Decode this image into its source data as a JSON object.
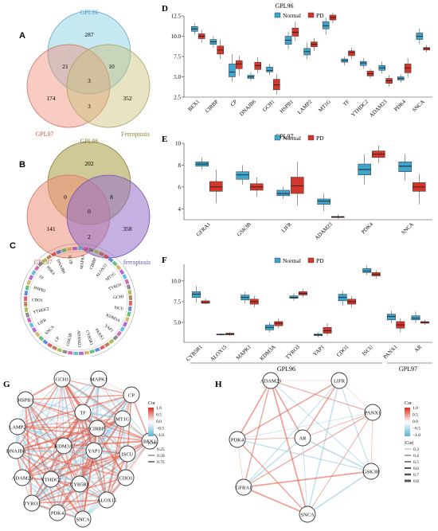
{
  "panels": {
    "A": {
      "letter": "A",
      "labels": {
        "top": "GPL96",
        "left": "GPL97",
        "right": "Ferroptosis"
      },
      "counts": {
        "top_only": "287",
        "left_only": "174",
        "right_only": "352",
        "top_left": "21",
        "top_right": "10",
        "left_right": "3",
        "all": "3"
      },
      "colors": {
        "top": "#7ecbe0",
        "left": "#ef8f7a",
        "right": "#b5b06a"
      }
    },
    "B": {
      "letter": "B",
      "labels": {
        "top": "GPL96",
        "left": "GPL97",
        "right": "ferroptosis"
      },
      "counts": {
        "top_only": "202",
        "left_only": "141",
        "right_only": "358",
        "top_left": "0",
        "top_right": "8",
        "left_right": "2",
        "all": "0"
      },
      "colors": {
        "top": "#a79c43",
        "left": "#ef8f7a",
        "right": "#9370c8"
      }
    },
    "C": {
      "letter": "C",
      "genes": [
        "IL1B",
        "MAPK1",
        "CIRBP",
        "ALOX15",
        "MT1G",
        "TYRO3",
        "GCH1",
        "ISCU",
        "KDM3A",
        "YAP1",
        "PANX1",
        "CYB5R1",
        "ADAM23",
        "GSK3B",
        "CP",
        "SNCA",
        "LIFR",
        "YTHDC2",
        "CDO1",
        "HSPB1",
        "TF",
        "PDK4",
        "DNAJB6"
      ]
    },
    "G": {
      "letter": "G",
      "nodes": [
        "GCH1",
        "MAPK1",
        "HSPB1",
        "CP",
        "LAMP2",
        "TF",
        "CIRBP",
        "MT1G",
        "DNAJB6",
        "KDM3A",
        "YAP1",
        "ISCU",
        "BEX1",
        "ADAM23",
        "YTHDC2",
        "CDO1",
        "CYB5R1",
        "ALOX15",
        "TYRO3",
        "PDK4",
        "SNCA"
      ],
      "legend": {
        "cor_title": "Cor",
        "cor_ticks": [
          "1.0",
          "0.5",
          "0.0",
          "−0.5",
          "−1.0"
        ],
        "abs_title": "|Cor|",
        "abs_ticks": [
          "0.25",
          "0.50",
          "0.75"
        ]
      }
    },
    "H": {
      "letter": "H",
      "nodes": [
        "ADAM23",
        "LIFR",
        "PANX1",
        "PDK4",
        "AR",
        "GSK3B",
        "GFRA1",
        "SNCA"
      ],
      "legend": {
        "cor_title": "Cor",
        "cor_ticks": [
          "1.0",
          "0.5",
          "0.0",
          "−0.5",
          "−1.0"
        ],
        "abs_title": "|Cor|",
        "abs_ticks": [
          "0.3",
          "0.4",
          "0.5",
          "0.6",
          "0.7",
          "0.8"
        ]
      }
    },
    "F": {
      "group_labels": [
        "GPL96",
        "GPL97"
      ]
    }
  },
  "chart_data": [
    {
      "panel": "D",
      "type": "box",
      "title": "GPL96",
      "legend": [
        "Normal",
        "PD"
      ],
      "colors": {
        "Normal": "#3fa5cd",
        "PD": "#d2372b"
      },
      "categories": [
        "BEX1",
        "CIRBP",
        "CP",
        "DNAJB6",
        "GCH1",
        "HSPB1",
        "LAMP2",
        "MT1G",
        "TF",
        "YTHDC2",
        "ADAM23",
        "PDK4",
        "SNCA"
      ],
      "ylim": [
        2.5,
        12.5
      ],
      "yticks": [
        "2.5",
        "5.0",
        "7.5",
        "10.0",
        "12.5"
      ],
      "series": [
        {
          "name": "Normal",
          "values": [
            [
              10.2,
              10.6,
              10.9,
              11.2,
              11.6
            ],
            [
              8.6,
              9.0,
              9.3,
              9.6,
              10.0
            ],
            [
              4.4,
              5.0,
              5.6,
              6.6,
              7.8
            ],
            [
              4.5,
              4.8,
              5.0,
              5.2,
              5.6
            ],
            [
              5.2,
              5.6,
              5.8,
              6.2,
              6.6
            ],
            [
              8.4,
              9.0,
              9.5,
              10.0,
              10.6
            ],
            [
              7.2,
              7.7,
              8.1,
              8.5,
              9.2
            ],
            [
              10.2,
              10.9,
              11.3,
              11.8,
              12.3
            ],
            [
              6.4,
              6.8,
              7.0,
              7.2,
              7.5
            ],
            [
              6.0,
              6.4,
              6.7,
              6.9,
              7.3
            ],
            [
              5.4,
              5.8,
              6.1,
              6.4,
              6.9
            ],
            [
              4.3,
              4.6,
              4.8,
              5.0,
              5.3
            ],
            [
              9.0,
              9.6,
              10.0,
              10.4,
              11.0
            ]
          ]
        },
        {
          "name": "PD",
          "values": [
            [
              9.2,
              9.7,
              10.0,
              10.3,
              10.8
            ],
            [
              7.2,
              7.8,
              8.3,
              8.8,
              9.6
            ],
            [
              5.2,
              6.0,
              6.6,
              7.0,
              7.6
            ],
            [
              5.4,
              5.9,
              6.4,
              6.8,
              7.4
            ],
            [
              2.8,
              3.4,
              4.0,
              4.7,
              5.3
            ],
            [
              9.4,
              10.0,
              10.5,
              11.0,
              11.8
            ],
            [
              8.2,
              8.7,
              9.0,
              9.3,
              9.8
            ],
            [
              11.6,
              12.0,
              12.3,
              12.6,
              12.9
            ],
            [
              7.2,
              7.6,
              8.0,
              8.2,
              8.6
            ],
            [
              4.8,
              5.1,
              5.4,
              5.7,
              6.0
            ],
            [
              3.8,
              4.2,
              4.5,
              4.8,
              5.2
            ],
            [
              4.9,
              5.5,
              6.1,
              6.6,
              7.3
            ],
            [
              8.0,
              8.3,
              8.5,
              8.6,
              8.9
            ]
          ]
        }
      ]
    },
    {
      "panel": "E",
      "type": "box",
      "title": "GPL97",
      "legend": [
        "Normal",
        "PD"
      ],
      "colors": {
        "Normal": "#3fa5cd",
        "PD": "#d2372b"
      },
      "categories": [
        "GFRA1",
        "GSK3B",
        "LIFR",
        "ADAM23",
        "PDK4",
        "SNCA"
      ],
      "ylim": [
        3,
        10
      ],
      "yticks": [
        "4",
        "6",
        "8",
        "10"
      ],
      "series": [
        {
          "name": "Normal",
          "values": [
            [
              7.6,
              7.9,
              8.1,
              8.3,
              8.7
            ],
            [
              6.2,
              6.7,
              7.1,
              7.4,
              8.0
            ],
            [
              4.9,
              5.2,
              5.4,
              5.7,
              6.0
            ],
            [
              3.8,
              4.4,
              4.7,
              4.9,
              5.4
            ],
            [
              6.2,
              7.1,
              7.6,
              8.1,
              9.0
            ],
            [
              6.6,
              7.4,
              7.9,
              8.3,
              9.0
            ]
          ]
        },
        {
          "name": "PD",
          "values": [
            [
              4.5,
              5.6,
              6.0,
              6.5,
              7.6
            ],
            [
              5.1,
              5.7,
              6.0,
              6.3,
              6.9
            ],
            [
              4.3,
              5.4,
              6.1,
              6.9,
              8.3
            ],
            [
              3.1,
              3.2,
              3.25,
              3.3,
              3.5
            ],
            [
              8.2,
              8.7,
              9.0,
              9.3,
              9.8
            ],
            [
              4.4,
              5.6,
              6.0,
              6.4,
              7.2
            ]
          ]
        }
      ]
    },
    {
      "panel": "F",
      "type": "box",
      "title": "",
      "legend": [
        "Normal",
        "PD"
      ],
      "colors": {
        "Normal": "#3fa5cd",
        "PD": "#d2372b"
      },
      "categories": [
        "CYB5R1",
        "ALOX15",
        "MAPK1",
        "KDM3A",
        "TYRO3",
        "YAP1",
        "CDO1",
        "ISCU",
        "PANX1",
        "AR"
      ],
      "ylim": [
        2.6,
        12
      ],
      "yticks": [
        "5.0",
        "7.5",
        "10.0"
      ],
      "series": [
        {
          "name": "Normal",
          "values": [
            [
              7.4,
              8.0,
              8.4,
              8.7,
              9.4
            ],
            [
              3.4,
              3.5,
              3.55,
              3.6,
              3.7
            ],
            [
              7.3,
              7.7,
              8.0,
              8.3,
              8.7
            ],
            [
              3.8,
              4.1,
              4.4,
              4.7,
              5.0
            ],
            [
              7.6,
              7.9,
              8.0,
              8.2,
              8.5
            ],
            [
              3.2,
              3.4,
              3.5,
              3.6,
              3.8
            ],
            [
              7.0,
              7.6,
              8.0,
              8.4,
              8.8
            ],
            [
              10.7,
              11.0,
              11.2,
              11.5,
              11.9
            ],
            [
              4.9,
              5.3,
              5.7,
              6.0,
              6.4
            ],
            [
              4.9,
              5.3,
              5.5,
              5.8,
              6.3
            ]
          ]
        },
        {
          "name": "PD",
          "values": [
            [
              7.2,
              7.3,
              7.4,
              7.6,
              7.9
            ],
            [
              3.4,
              3.5,
              3.6,
              3.7,
              3.8
            ],
            [
              6.8,
              7.2,
              7.5,
              7.8,
              8.2
            ],
            [
              4.3,
              4.6,
              4.9,
              5.1,
              5.5
            ],
            [
              8.0,
              8.3,
              8.5,
              8.7,
              9.0
            ],
            [
              3.4,
              3.7,
              4.0,
              4.4,
              4.9
            ],
            [
              6.8,
              7.2,
              7.5,
              7.8,
              8.2
            ],
            [
              10.3,
              10.6,
              10.8,
              11.0,
              11.3
            ],
            [
              3.8,
              4.3,
              4.7,
              5.1,
              5.5
            ],
            [
              4.7,
              4.9,
              5.0,
              5.1,
              5.3
            ]
          ]
        }
      ]
    }
  ]
}
